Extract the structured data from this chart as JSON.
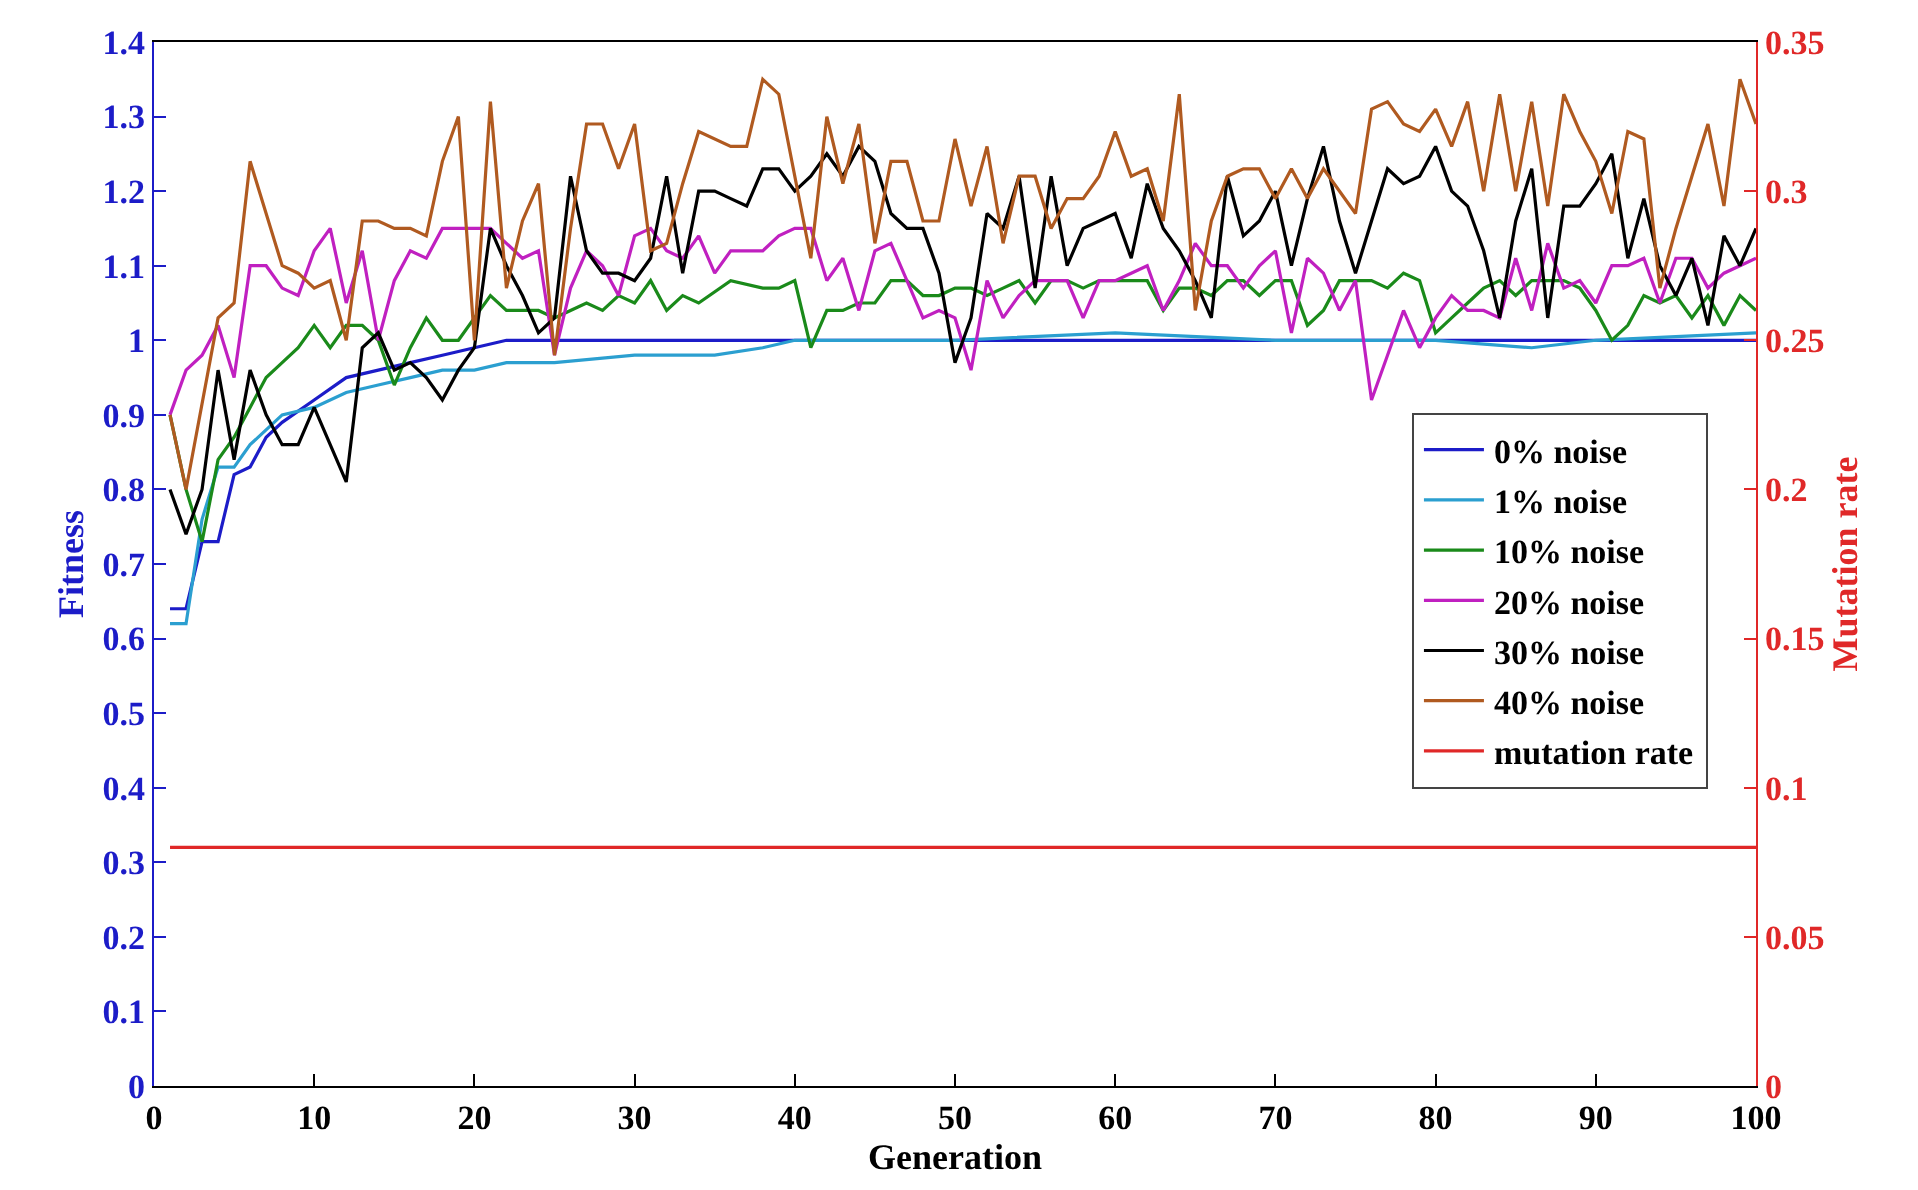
{
  "chart_data": {
    "type": "line",
    "xlabel": "Generation",
    "ylabel": "Fitness",
    "y2label": "Mutation rate",
    "xlim": [
      0,
      100
    ],
    "xticks": [
      0,
      10,
      20,
      30,
      40,
      50,
      60,
      70,
      80,
      90,
      100
    ],
    "ylim": [
      0,
      1.4
    ],
    "yticks": [
      0,
      0.1,
      0.2,
      0.3,
      0.4,
      0.5,
      0.6,
      0.7,
      0.8,
      0.9,
      1,
      1.1,
      1.2,
      1.3,
      1.4
    ],
    "y2lim": [
      0,
      0.35
    ],
    "y2ticks": [
      0,
      0.05,
      0.1,
      0.15,
      0.2,
      0.25,
      0.3,
      0.35
    ],
    "legend": "right",
    "marker": "none",
    "line_style": "solid",
    "series": [
      {
        "name": "0% noise",
        "color": "#1c1cc8",
        "x": [
          1,
          2,
          3,
          4,
          5,
          6,
          7,
          8,
          10,
          12,
          14,
          16,
          18,
          20,
          22,
          30,
          40,
          50,
          60,
          70,
          80,
          90,
          100
        ],
        "values": [
          0.64,
          0.64,
          0.73,
          0.73,
          0.82,
          0.83,
          0.87,
          0.89,
          0.92,
          0.95,
          0.96,
          0.97,
          0.98,
          0.99,
          1.0,
          1.0,
          1.0,
          1.0,
          1.0,
          1.0,
          1.0,
          1.0,
          1.0
        ]
      },
      {
        "name": "1% noise",
        "color": "#2b9fd0",
        "x": [
          1,
          2,
          3,
          4,
          5,
          6,
          8,
          10,
          12,
          14,
          16,
          18,
          20,
          22,
          25,
          30,
          35,
          38,
          40,
          50,
          60,
          70,
          80,
          86,
          90,
          100
        ],
        "values": [
          0.62,
          0.62,
          0.76,
          0.83,
          0.83,
          0.86,
          0.9,
          0.91,
          0.93,
          0.94,
          0.95,
          0.96,
          0.96,
          0.97,
          0.97,
          0.98,
          0.98,
          0.99,
          1.0,
          1.0,
          1.01,
          1.0,
          1.0,
          0.99,
          1.0,
          1.01
        ]
      },
      {
        "name": "10% noise",
        "color": "#1a8a1a",
        "x": [
          1,
          2,
          3,
          4,
          5,
          6,
          7,
          8,
          9,
          10,
          11,
          12,
          13,
          14,
          15,
          16,
          17,
          18,
          19,
          20,
          21,
          22,
          23,
          24,
          25,
          26,
          27,
          28,
          29,
          30,
          31,
          32,
          33,
          34,
          36,
          38,
          39,
          40,
          41,
          42,
          43,
          44,
          45,
          46,
          47,
          48,
          49,
          50,
          51,
          52,
          53,
          54,
          55,
          56,
          57,
          58,
          59,
          60,
          61,
          62,
          63,
          64,
          65,
          66,
          67,
          68,
          69,
          70,
          71,
          72,
          73,
          74,
          75,
          76,
          77,
          78,
          79,
          80,
          81,
          82,
          83,
          84,
          85,
          86,
          87,
          88,
          89,
          90,
          91,
          92,
          93,
          94,
          95,
          96,
          97,
          98,
          99,
          100
        ],
        "values": [
          0.9,
          0.8,
          0.73,
          0.84,
          0.87,
          0.91,
          0.95,
          0.97,
          0.99,
          1.02,
          0.99,
          1.02,
          1.02,
          1.0,
          0.94,
          0.99,
          1.03,
          1.0,
          1.0,
          1.03,
          1.06,
          1.04,
          1.04,
          1.04,
          1.03,
          1.04,
          1.05,
          1.04,
          1.06,
          1.05,
          1.08,
          1.04,
          1.06,
          1.05,
          1.08,
          1.07,
          1.07,
          1.08,
          0.99,
          1.04,
          1.04,
          1.05,
          1.05,
          1.08,
          1.08,
          1.06,
          1.06,
          1.07,
          1.07,
          1.06,
          1.07,
          1.08,
          1.05,
          1.08,
          1.08,
          1.07,
          1.08,
          1.08,
          1.08,
          1.08,
          1.04,
          1.07,
          1.07,
          1.06,
          1.08,
          1.08,
          1.06,
          1.08,
          1.08,
          1.02,
          1.04,
          1.08,
          1.08,
          1.08,
          1.07,
          1.09,
          1.08,
          1.01,
          1.03,
          1.05,
          1.07,
          1.08,
          1.06,
          1.08,
          1.08,
          1.08,
          1.07,
          1.04,
          1.0,
          1.02,
          1.06,
          1.05,
          1.06,
          1.03,
          1.06,
          1.02,
          1.06,
          1.04
        ]
      },
      {
        "name": "20% noise",
        "color": "#c020c0",
        "x": [
          1,
          2,
          3,
          4,
          5,
          6,
          7,
          8,
          9,
          10,
          11,
          12,
          13,
          14,
          15,
          16,
          17,
          18,
          19,
          20,
          21,
          22,
          23,
          24,
          25,
          26,
          27,
          28,
          29,
          30,
          31,
          32,
          33,
          34,
          35,
          36,
          37,
          38,
          39,
          40,
          41,
          42,
          43,
          44,
          45,
          46,
          47,
          48,
          49,
          50,
          51,
          52,
          53,
          54,
          55,
          56,
          57,
          58,
          59,
          60,
          61,
          62,
          63,
          64,
          65,
          66,
          67,
          68,
          69,
          70,
          71,
          72,
          73,
          74,
          75,
          76,
          77,
          78,
          79,
          80,
          81,
          82,
          83,
          84,
          85,
          86,
          87,
          88,
          89,
          90,
          91,
          92,
          93,
          94,
          95,
          96,
          97,
          98,
          99,
          100
        ],
        "values": [
          0.9,
          0.96,
          0.98,
          1.02,
          0.95,
          1.1,
          1.1,
          1.07,
          1.06,
          1.12,
          1.15,
          1.05,
          1.12,
          1.0,
          1.08,
          1.12,
          1.11,
          1.15,
          1.15,
          1.15,
          1.15,
          1.13,
          1.11,
          1.12,
          0.98,
          1.07,
          1.12,
          1.1,
          1.06,
          1.14,
          1.15,
          1.12,
          1.11,
          1.14,
          1.09,
          1.12,
          1.12,
          1.12,
          1.14,
          1.15,
          1.15,
          1.08,
          1.11,
          1.04,
          1.12,
          1.13,
          1.08,
          1.03,
          1.04,
          1.03,
          0.96,
          1.08,
          1.03,
          1.06,
          1.08,
          1.08,
          1.08,
          1.03,
          1.08,
          1.08,
          1.09,
          1.1,
          1.04,
          1.08,
          1.13,
          1.1,
          1.1,
          1.07,
          1.1,
          1.12,
          1.01,
          1.11,
          1.09,
          1.04,
          1.08,
          0.92,
          0.98,
          1.04,
          0.99,
          1.03,
          1.06,
          1.04,
          1.04,
          1.03,
          1.11,
          1.04,
          1.13,
          1.07,
          1.08,
          1.05,
          1.1,
          1.1,
          1.11,
          1.05,
          1.11,
          1.11,
          1.07,
          1.09,
          1.1,
          1.11
        ]
      },
      {
        "name": "30% noise",
        "color": "#000000",
        "x": [
          1,
          2,
          3,
          4,
          5,
          6,
          7,
          8,
          9,
          10,
          11,
          12,
          13,
          14,
          15,
          16,
          17,
          18,
          19,
          20,
          21,
          22,
          23,
          24,
          25,
          26,
          27,
          28,
          29,
          30,
          31,
          32,
          33,
          34,
          35,
          36,
          37,
          38,
          39,
          40,
          41,
          42,
          43,
          44,
          45,
          46,
          47,
          48,
          49,
          50,
          51,
          52,
          53,
          54,
          55,
          56,
          57,
          58,
          59,
          60,
          61,
          62,
          63,
          64,
          65,
          66,
          67,
          68,
          69,
          70,
          71,
          72,
          73,
          74,
          75,
          76,
          77,
          78,
          79,
          80,
          81,
          82,
          83,
          84,
          85,
          86,
          87,
          88,
          89,
          90,
          91,
          92,
          93,
          94,
          95,
          96,
          97,
          98,
          99,
          100
        ],
        "values": [
          0.8,
          0.74,
          0.8,
          0.96,
          0.84,
          0.96,
          0.9,
          0.86,
          0.86,
          0.91,
          0.86,
          0.81,
          0.99,
          1.01,
          0.96,
          0.97,
          0.95,
          0.92,
          0.96,
          0.99,
          1.15,
          1.1,
          1.06,
          1.01,
          1.03,
          1.22,
          1.12,
          1.09,
          1.09,
          1.08,
          1.11,
          1.22,
          1.09,
          1.2,
          1.2,
          1.19,
          1.18,
          1.23,
          1.23,
          1.2,
          1.22,
          1.25,
          1.22,
          1.26,
          1.24,
          1.17,
          1.15,
          1.15,
          1.09,
          0.97,
          1.03,
          1.17,
          1.15,
          1.22,
          1.07,
          1.22,
          1.1,
          1.15,
          1.16,
          1.17,
          1.11,
          1.21,
          1.15,
          1.12,
          1.08,
          1.03,
          1.22,
          1.14,
          1.16,
          1.2,
          1.1,
          1.19,
          1.26,
          1.16,
          1.09,
          1.16,
          1.23,
          1.21,
          1.22,
          1.26,
          1.2,
          1.18,
          1.12,
          1.03,
          1.16,
          1.23,
          1.03,
          1.18,
          1.18,
          1.21,
          1.25,
          1.11,
          1.19,
          1.1,
          1.06,
          1.11,
          1.02,
          1.14,
          1.1,
          1.15
        ]
      },
      {
        "name": "40% noise",
        "color": "#b05a20",
        "x": [
          1,
          2,
          4,
          5,
          6,
          8,
          9,
          10,
          11,
          12,
          13,
          14,
          15,
          16,
          17,
          18,
          19,
          20,
          21,
          22,
          23,
          24,
          25,
          26,
          27,
          28,
          29,
          30,
          31,
          32,
          33,
          34,
          36,
          37,
          38,
          39,
          41,
          42,
          43,
          44,
          45,
          46,
          47,
          48,
          49,
          50,
          51,
          52,
          53,
          54,
          55,
          56,
          57,
          58,
          59,
          60,
          61,
          62,
          63,
          64,
          65,
          66,
          67,
          68,
          69,
          70,
          71,
          72,
          73,
          75,
          76,
          77,
          78,
          79,
          80,
          81,
          82,
          83,
          84,
          85,
          86,
          87,
          88,
          89,
          90,
          91,
          92,
          93,
          94,
          95,
          96,
          97,
          98,
          99,
          100
        ],
        "values": [
          0.9,
          0.8,
          1.03,
          1.05,
          1.24,
          1.1,
          1.09,
          1.07,
          1.08,
          1.0,
          1.16,
          1.16,
          1.15,
          1.15,
          1.14,
          1.24,
          1.3,
          1.0,
          1.32,
          1.07,
          1.16,
          1.21,
          0.98,
          1.15,
          1.29,
          1.29,
          1.23,
          1.29,
          1.12,
          1.13,
          1.21,
          1.28,
          1.26,
          1.26,
          1.35,
          1.33,
          1.11,
          1.3,
          1.21,
          1.29,
          1.13,
          1.24,
          1.24,
          1.16,
          1.16,
          1.27,
          1.18,
          1.26,
          1.13,
          1.22,
          1.22,
          1.15,
          1.19,
          1.19,
          1.22,
          1.28,
          1.22,
          1.23,
          1.16,
          1.33,
          1.04,
          1.16,
          1.22,
          1.23,
          1.23,
          1.19,
          1.23,
          1.19,
          1.23,
          1.17,
          1.31,
          1.32,
          1.29,
          1.28,
          1.31,
          1.26,
          1.32,
          1.2,
          1.33,
          1.2,
          1.32,
          1.18,
          1.33,
          1.28,
          1.24,
          1.17,
          1.28,
          1.27,
          1.07,
          1.15,
          1.22,
          1.29,
          1.18,
          1.35,
          1.29
        ]
      },
      {
        "name": "mutation rate",
        "color": "#e02828",
        "axis": "y2",
        "x": [
          1,
          100
        ],
        "values": [
          0.08,
          0.08
        ]
      }
    ]
  }
}
